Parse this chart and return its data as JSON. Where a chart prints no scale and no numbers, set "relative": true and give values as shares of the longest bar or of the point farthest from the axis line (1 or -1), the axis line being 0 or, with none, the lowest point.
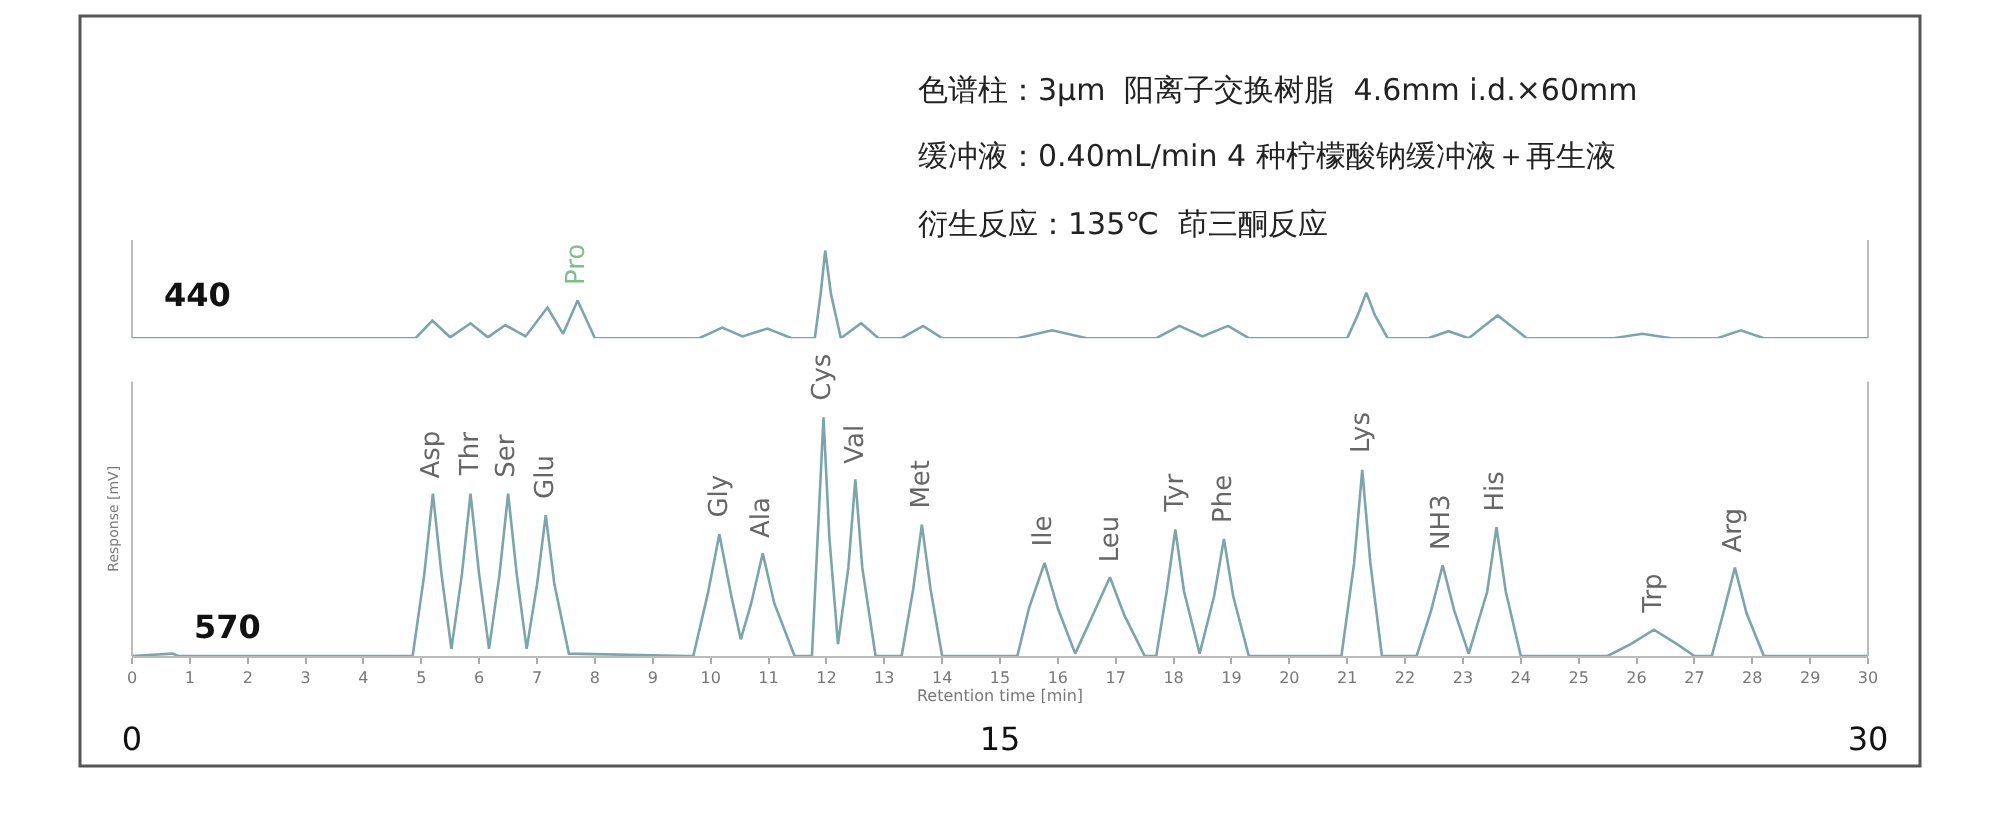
{
  "chart_data": [
    {
      "type": "line",
      "relative": true,
      "xlim": [
        0,
        30
      ],
      "tick_labels": false,
      "annotations": [
        "色谱柱：3μm  阳离子交换树脂  4.6mm i.d.×60mm",
        "缓冲液：0.40mL/min 4 种柠檬酸钠缓冲液＋再生液",
        "衍生反应：135℃  茚三酮反应",
        {
          "text": "Pro",
          "x": 7.7,
          "y": 0.43
        }
      ],
      "series": [
        {
          "name": "440",
          "color": "#7aa5ab",
          "x": [
            0,
            4.9,
            5.19,
            5.5,
            5.85,
            6.15,
            6.45,
            6.8,
            7.18,
            7.45,
            7.7,
            8.0,
            9.8,
            10.2,
            10.55,
            10.98,
            11.4,
            11.8,
            11.9,
            11.98,
            12.08,
            12.25,
            12.6,
            12.9,
            13.3,
            13.67,
            14.0,
            15.3,
            15.9,
            16.5,
            17.7,
            18.1,
            18.5,
            18.94,
            19.3,
            21.0,
            21.18,
            21.33,
            21.48,
            21.7,
            22.4,
            22.75,
            23.1,
            23.35,
            23.6,
            23.85,
            24.1,
            25.6,
            26.1,
            26.6,
            27.4,
            27.8,
            28.2,
            30
          ],
          "values": [
            0,
            0,
            0.2,
            0.01,
            0.17,
            0.01,
            0.15,
            0.02,
            0.35,
            0.05,
            0.43,
            0,
            0,
            0.12,
            0.02,
            0.11,
            0,
            0,
            0.5,
            1.0,
            0.5,
            0,
            0.17,
            0,
            0,
            0.14,
            0,
            0,
            0.09,
            0,
            0,
            0.14,
            0.02,
            0.14,
            0,
            0,
            0.26,
            0.52,
            0.26,
            0,
            0,
            0.08,
            0,
            0.13,
            0.26,
            0.13,
            0,
            0,
            0.05,
            0,
            0,
            0.09,
            0,
            0
          ]
        }
      ]
    },
    {
      "type": "line",
      "relative": true,
      "xlim": [
        0,
        30
      ],
      "xticks": [
        0,
        1,
        2,
        3,
        4,
        5,
        6,
        7,
        8,
        9,
        10,
        11,
        12,
        13,
        14,
        15,
        16,
        17,
        18,
        19,
        20,
        21,
        22,
        23,
        24,
        25,
        26,
        27,
        28,
        29,
        30
      ],
      "x2lim": [
        0,
        30
      ],
      "x2ticks": [
        0,
        15,
        30
      ],
      "xlabel": "Retention time [min]",
      "ylabel": "Response [mV]",
      "tick_labels": "x",
      "annotations": [
        {
          "text": "Asp",
          "x": 5.2,
          "y": 0.68
        },
        {
          "text": "Thr",
          "x": 5.85,
          "y": 0.68
        },
        {
          "text": "Ser",
          "x": 6.5,
          "y": 0.68
        },
        {
          "text": "Glu",
          "x": 7.15,
          "y": 0.59
        },
        {
          "text": "Gly",
          "x": 10.15,
          "y": 0.51
        },
        {
          "text": "Ala",
          "x": 10.9,
          "y": 0.43
        },
        {
          "text": "Cys",
          "x": 11.95,
          "y": 1.0
        },
        {
          "text": "Val",
          "x": 12.5,
          "y": 0.74
        },
        {
          "text": "Met",
          "x": 13.65,
          "y": 0.55
        },
        {
          "text": "Ile",
          "x": 15.77,
          "y": 0.39
        },
        {
          "text": "Leu",
          "x": 16.9,
          "y": 0.33
        },
        {
          "text": "Tyr",
          "x": 18.03,
          "y": 0.53
        },
        {
          "text": "Phe",
          "x": 18.87,
          "y": 0.49
        },
        {
          "text": "Lys",
          "x": 21.26,
          "y": 0.78
        },
        {
          "text": "NH3",
          "x": 22.65,
          "y": 0.38
        },
        {
          "text": "His",
          "x": 23.58,
          "y": 0.54
        },
        {
          "text": "Trp",
          "x": 26.3,
          "y": 0.11
        },
        {
          "text": "Arg",
          "x": 27.7,
          "y": 0.37
        }
      ],
      "series": [
        {
          "name": "570",
          "color": "#7aa5ab",
          "x": [
            0,
            0.7,
            0.8,
            4.8,
            4.85,
            5.05,
            5.2,
            5.35,
            5.52,
            5.7,
            5.85,
            6.0,
            6.17,
            6.35,
            6.5,
            6.65,
            6.82,
            7.0,
            7.15,
            7.3,
            7.55,
            9.6,
            9.7,
            9.95,
            10.15,
            10.35,
            10.52,
            10.7,
            10.9,
            11.1,
            11.45,
            11.75,
            11.85,
            11.95,
            12.05,
            12.2,
            12.38,
            12.5,
            12.62,
            12.85,
            13.3,
            13.5,
            13.65,
            13.8,
            14.0,
            15.3,
            15.5,
            15.77,
            16.0,
            16.3,
            16.6,
            16.9,
            17.15,
            17.5,
            17.7,
            17.88,
            18.03,
            18.18,
            18.45,
            18.7,
            18.87,
            19.03,
            19.3,
            20.9,
            21.12,
            21.26,
            21.4,
            21.6,
            22.2,
            22.45,
            22.65,
            22.85,
            23.1,
            23.42,
            23.58,
            23.74,
            24.0,
            25.5,
            25.9,
            26.3,
            26.7,
            27.0,
            27.3,
            27.5,
            27.7,
            27.9,
            28.2,
            30
          ],
          "values": [
            0,
            0.01,
            0,
            0,
            0,
            0.34,
            0.68,
            0.34,
            0.03,
            0.34,
            0.68,
            0.34,
            0.03,
            0.34,
            0.68,
            0.34,
            0.03,
            0.3,
            0.59,
            0.3,
            0.01,
            0,
            0,
            0.26,
            0.51,
            0.26,
            0.07,
            0.22,
            0.43,
            0.22,
            0,
            0,
            0.5,
            1.0,
            0.5,
            0.05,
            0.37,
            0.74,
            0.37,
            0,
            0,
            0.28,
            0.55,
            0.28,
            0,
            0,
            0.2,
            0.39,
            0.2,
            0.01,
            0.17,
            0.33,
            0.17,
            0,
            0,
            0.27,
            0.53,
            0.27,
            0.01,
            0.25,
            0.49,
            0.25,
            0,
            0,
            0.39,
            0.78,
            0.39,
            0,
            0,
            0.19,
            0.38,
            0.19,
            0.01,
            0.27,
            0.54,
            0.27,
            0,
            0,
            0.05,
            0.11,
            0.05,
            0,
            0,
            0.18,
            0.37,
            0.18,
            0,
            0
          ]
        }
      ]
    }
  ]
}
